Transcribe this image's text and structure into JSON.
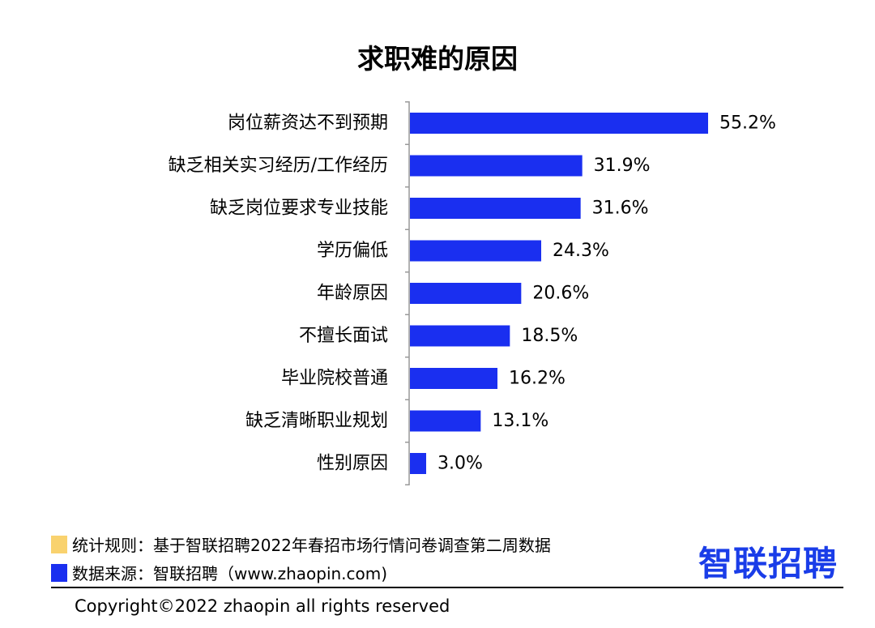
{
  "chart_data": {
    "type": "bar",
    "orientation": "horizontal",
    "title": "求职难的原因",
    "categories": [
      "岗位薪资达不到预期",
      "缺乏相关实习经历/工作经历",
      "缺乏岗位要求专业技能",
      "学历偏低",
      "年龄原因",
      "不擅长面试",
      "毕业院校普通",
      "缺乏清晰职业规划",
      "性别原因"
    ],
    "values": [
      55.2,
      31.9,
      31.6,
      24.3,
      20.6,
      18.5,
      16.2,
      13.1,
      3.0
    ],
    "value_labels": [
      "55.2%",
      "31.9%",
      "31.6%",
      "24.3%",
      "20.6%",
      "18.5%",
      "16.2%",
      "13.1%",
      "3.0%"
    ],
    "bar_color": "#1a2ff0",
    "grid": false,
    "legend": "none"
  },
  "footer": {
    "rule_text": "统计规则：基于智联招聘2022年春招市场行情问卷调查第二周数据",
    "rule_color": "#f9d26e",
    "source_text": "数据来源：智联招聘（www.zhaopin.com)",
    "source_color": "#1a2ff0",
    "logo_text": "智联招聘",
    "copyright": "Copyright©2022 zhaopin all rights reserved"
  }
}
